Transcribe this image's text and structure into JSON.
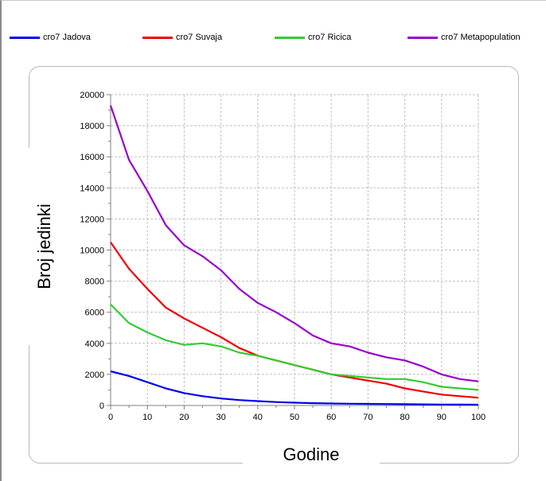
{
  "legend": [
    {
      "label": "cro7 Jadova",
      "color": "#0000ee"
    },
    {
      "label": "cro7 Suvaja",
      "color": "#ee0000"
    },
    {
      "label": "cro7 Ricica",
      "color": "#33cc33"
    },
    {
      "label": "cro7 Metapopulation",
      "color": "#9900cc"
    }
  ],
  "chart_data": {
    "type": "line",
    "title": "",
    "xlabel": "Godine",
    "ylabel": "Broj jedinki",
    "xlim": [
      0,
      100
    ],
    "ylim": [
      0,
      20000
    ],
    "x_ticks": [
      0,
      10,
      20,
      30,
      40,
      50,
      60,
      70,
      80,
      90,
      100
    ],
    "y_ticks": [
      0,
      2000,
      4000,
      6000,
      8000,
      10000,
      12000,
      14000,
      16000,
      18000,
      20000
    ],
    "grid": true,
    "legend_position": "top",
    "x": [
      0,
      5,
      10,
      15,
      20,
      25,
      30,
      35,
      40,
      45,
      50,
      55,
      60,
      65,
      70,
      75,
      80,
      85,
      90,
      95,
      100
    ],
    "series": [
      {
        "name": "cro7 Jadova",
        "color": "#0000ee",
        "values": [
          2200,
          1900,
          1500,
          1100,
          800,
          600,
          450,
          350,
          280,
          220,
          180,
          150,
          130,
          110,
          100,
          90,
          80,
          70,
          60,
          55,
          50
        ]
      },
      {
        "name": "cro7 Suvaja",
        "color": "#ee0000",
        "values": [
          10500,
          8800,
          7500,
          6300,
          5600,
          5000,
          4400,
          3700,
          3200,
          2900,
          2600,
          2300,
          2000,
          1800,
          1600,
          1400,
          1100,
          900,
          700,
          600,
          500
        ]
      },
      {
        "name": "cro7 Ricica",
        "color": "#33cc33",
        "values": [
          6500,
          5300,
          4700,
          4200,
          3900,
          4000,
          3800,
          3400,
          3200,
          2900,
          2600,
          2300,
          2000,
          1900,
          1800,
          1700,
          1700,
          1500,
          1200,
          1100,
          1000
        ]
      },
      {
        "name": "cro7 Metapopulation",
        "color": "#9900cc",
        "values": [
          19300,
          15800,
          13800,
          11600,
          10300,
          9600,
          8700,
          7500,
          6600,
          6000,
          5300,
          4500,
          4000,
          3800,
          3400,
          3100,
          2900,
          2500,
          2000,
          1700,
          1550
        ]
      }
    ]
  }
}
